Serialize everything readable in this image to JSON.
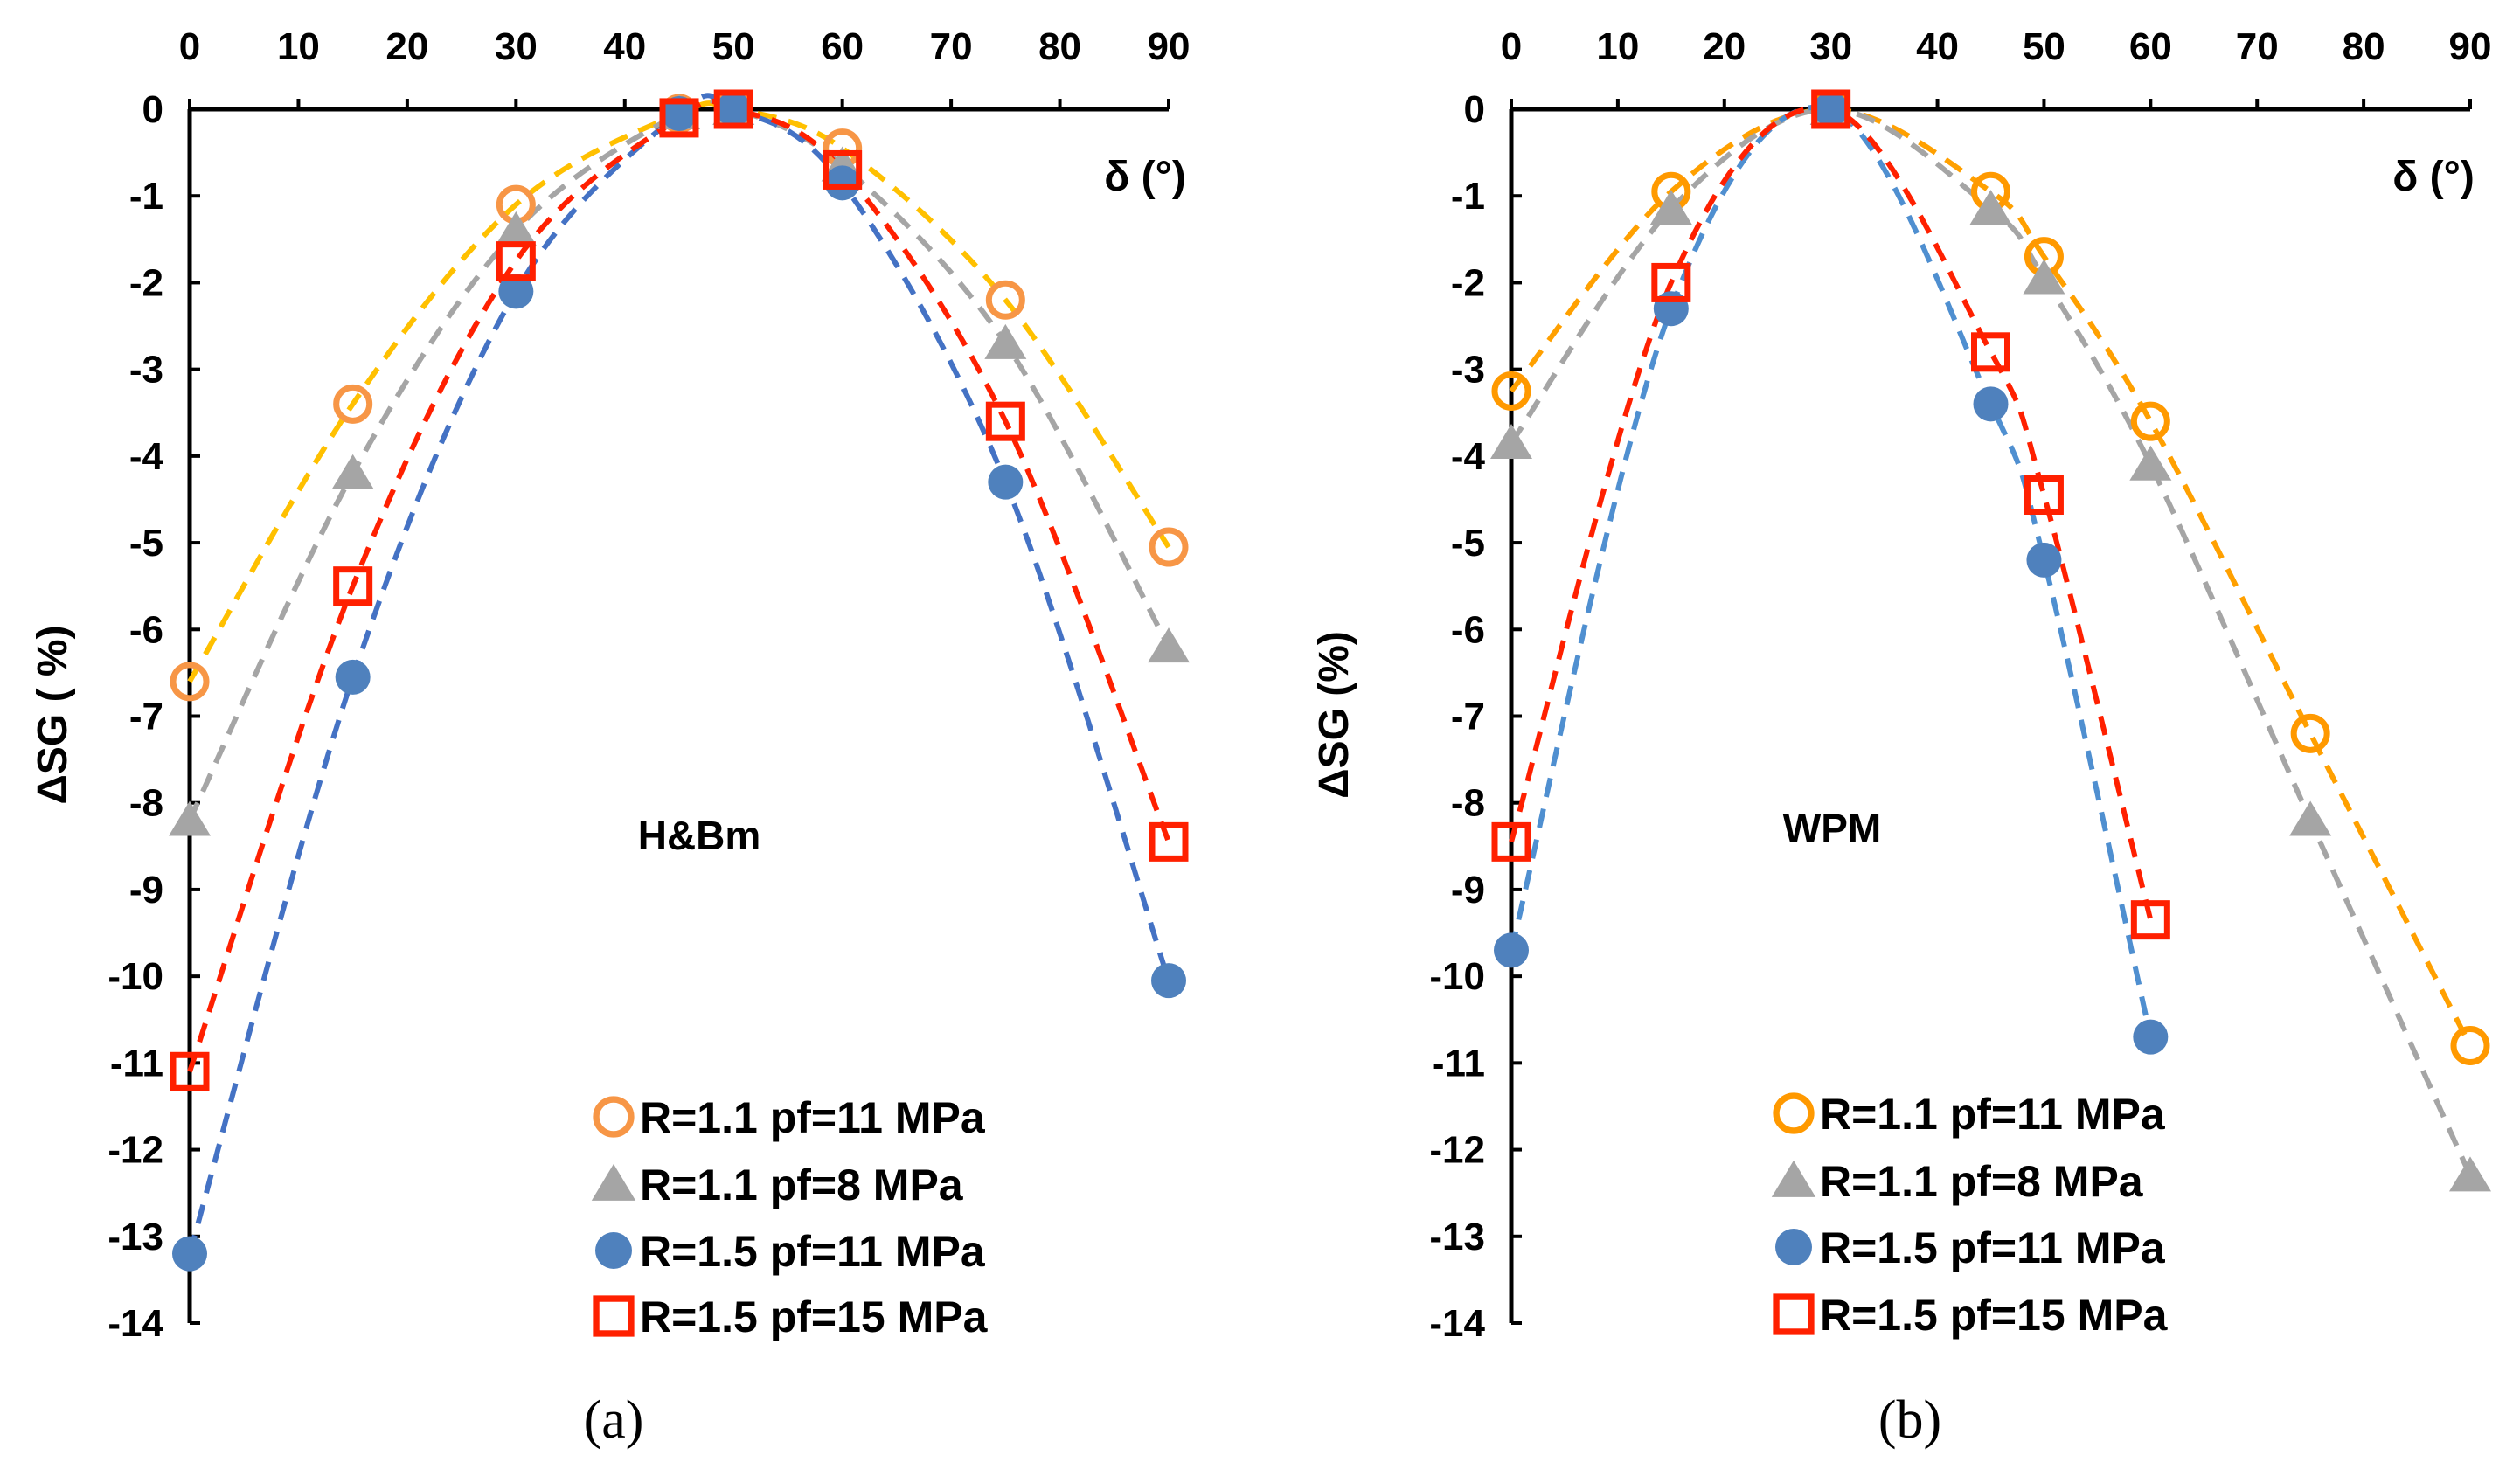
{
  "chart_data": [
    {
      "type": "scatter",
      "caption": "(a)",
      "title": "H&Bm",
      "xlabel": "δ (°)",
      "ylabel": "ΔSG ( %)",
      "xlim": [
        0,
        90
      ],
      "ylim": [
        -14,
        0
      ],
      "xticks": [
        "0",
        "10",
        "20",
        "30",
        "40",
        "50",
        "60",
        "70",
        "80",
        "90"
      ],
      "yticks": [
        "0",
        "-1",
        "-2",
        "-3",
        "-4",
        "-5",
        "-6",
        "-7",
        "-8",
        "-9",
        "-10",
        "-11",
        "-12",
        "-13",
        "-14"
      ],
      "legend_position": "bottom-right",
      "x": [
        0,
        15,
        30,
        45,
        50,
        60,
        75,
        90
      ],
      "series": [
        {
          "name": "R=1.1 pf=11 MPa",
          "marker": "open-circle",
          "color": "#F79646",
          "trend_color": "#FFC000",
          "values": [
            -6.6,
            -3.4,
            -1.1,
            -0.05,
            0,
            -0.45,
            -2.2,
            -5.05
          ]
        },
        {
          "name": "R=1.1 pf=8 MPa",
          "marker": "triangle",
          "color": "#A5A5A5",
          "trend_color": "#A5A5A5",
          "values": [
            -8.2,
            -4.2,
            -1.4,
            -0.05,
            0,
            -0.65,
            -2.7,
            -6.2
          ]
        },
        {
          "name": "R=1.5 pf=11 MPa",
          "marker": "filled-circle",
          "color": "#4F81BD",
          "trend_color": "#4472C4",
          "values": [
            -13.2,
            -6.55,
            -2.1,
            -0.05,
            0,
            -0.85,
            -4.3,
            -10.05
          ]
        },
        {
          "name": "R=1.5 pf=15 MPa",
          "marker": "open-square",
          "color": "#FF2000",
          "trend_color": "#FF2000",
          "values": [
            -11.1,
            -5.5,
            -1.75,
            -0.1,
            0,
            -0.7,
            -3.6,
            -8.45
          ]
        }
      ]
    },
    {
      "type": "scatter",
      "caption": "(b)",
      "title": "WPM",
      "xlabel": "δ (°)",
      "ylabel": "ΔSG (%)",
      "xlim": [
        0,
        90
      ],
      "ylim": [
        -14,
        0
      ],
      "xticks": [
        "0",
        "10",
        "20",
        "30",
        "40",
        "50",
        "60",
        "70",
        "80",
        "90"
      ],
      "yticks": [
        "0",
        "-1",
        "-2",
        "-3",
        "-4",
        "-5",
        "-6",
        "-7",
        "-8",
        "-9",
        "-10",
        "-11",
        "-12",
        "-13",
        "-14"
      ],
      "legend_position": "bottom-right",
      "x": [
        0,
        15,
        30,
        45,
        50,
        60,
        75,
        90
      ],
      "series": [
        {
          "name": "R=1.1 pf=11 MPa",
          "marker": "open-circle",
          "color": "#FF9900",
          "trend_color": "#FFA000",
          "values": [
            -3.25,
            -0.95,
            0,
            -0.95,
            -1.7,
            -3.6,
            -7.2,
            -10.8
          ]
        },
        {
          "name": "R=1.1 pf=8 MPa",
          "marker": "triangle",
          "color": "#A5A5A5",
          "trend_color": "#A5A5A5",
          "values": [
            -3.85,
            -1.15,
            0,
            -1.15,
            -1.95,
            -4.1,
            -8.2,
            -12.3
          ]
        },
        {
          "name": "R=1.5 pf=11 MPa",
          "marker": "filled-circle",
          "color": "#4F81BD",
          "trend_color": "#4F8FD0",
          "values": [
            -9.7,
            -2.3,
            0,
            -3.4,
            -5.2,
            -10.7,
            null,
            null
          ]
        },
        {
          "name": "R=1.5 pf=15 MPa",
          "marker": "open-square",
          "color": "#FF2000",
          "trend_color": "#FF2000",
          "values": [
            -8.45,
            -2.0,
            0,
            -2.8,
            -4.45,
            -9.35,
            null,
            null
          ]
        }
      ]
    }
  ]
}
